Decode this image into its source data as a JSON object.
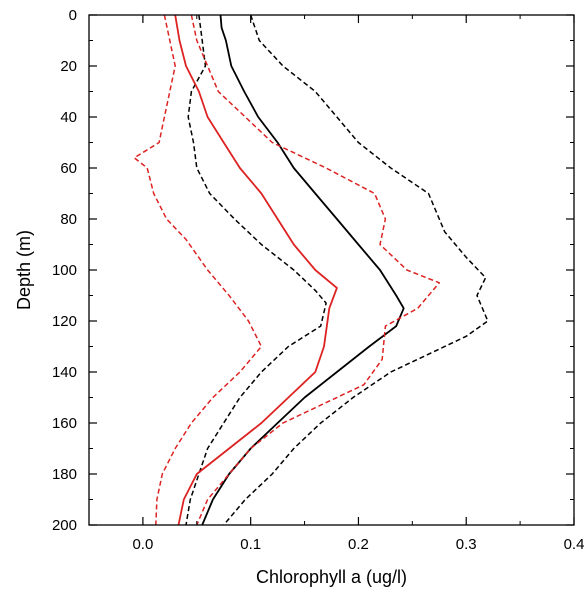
{
  "chart_data": {
    "type": "line",
    "title": "",
    "xlabel": "Chlorophyll a (ug/l)",
    "ylabel": "Depth (m)",
    "xlim": [
      -0.05,
      0.4
    ],
    "ylim": [
      0,
      200
    ],
    "y_inverted": true,
    "grid": false,
    "legend": "none",
    "x_ticks": [
      0.0,
      0.1,
      0.2,
      0.3,
      0.4
    ],
    "x_tick_labels": [
      "0.0",
      "0.1",
      "0.2",
      "0.3",
      "0.4"
    ],
    "y_ticks": [
      0,
      20,
      40,
      60,
      80,
      100,
      120,
      140,
      160,
      180,
      200
    ],
    "y_tick_labels": [
      "0",
      "20",
      "40",
      "60",
      "80",
      "100",
      "120",
      "140",
      "160",
      "180",
      "200"
    ],
    "series": [
      {
        "color": "#000000",
        "style": "solid",
        "points": [
          [
            0.072,
            0
          ],
          [
            0.073,
            5
          ],
          [
            0.077,
            10
          ],
          [
            0.082,
            20
          ],
          [
            0.094,
            30
          ],
          [
            0.107,
            40
          ],
          [
            0.125,
            50
          ],
          [
            0.14,
            60
          ],
          [
            0.16,
            70
          ],
          [
            0.18,
            80
          ],
          [
            0.2,
            90
          ],
          [
            0.22,
            100
          ],
          [
            0.235,
            110
          ],
          [
            0.242,
            115
          ],
          [
            0.235,
            122
          ],
          [
            0.21,
            130
          ],
          [
            0.18,
            140
          ],
          [
            0.15,
            150
          ],
          [
            0.125,
            160
          ],
          [
            0.1,
            170
          ],
          [
            0.08,
            180
          ],
          [
            0.065,
            190
          ],
          [
            0.055,
            200
          ]
        ]
      },
      {
        "color": "#000000",
        "style": "dashed",
        "points": [
          [
            0.052,
            0
          ],
          [
            0.055,
            10
          ],
          [
            0.058,
            20
          ],
          [
            0.045,
            30
          ],
          [
            0.042,
            40
          ],
          [
            0.047,
            50
          ],
          [
            0.05,
            60
          ],
          [
            0.062,
            70
          ],
          [
            0.085,
            80
          ],
          [
            0.11,
            90
          ],
          [
            0.14,
            100
          ],
          [
            0.16,
            108
          ],
          [
            0.17,
            113
          ],
          [
            0.165,
            122
          ],
          [
            0.135,
            130
          ],
          [
            0.11,
            140
          ],
          [
            0.09,
            150
          ],
          [
            0.075,
            160
          ],
          [
            0.06,
            170
          ],
          [
            0.052,
            180
          ],
          [
            0.044,
            190
          ],
          [
            0.04,
            200
          ]
        ]
      },
      {
        "color": "#000000",
        "style": "dashed",
        "points": [
          [
            0.1,
            0
          ],
          [
            0.108,
            10
          ],
          [
            0.13,
            20
          ],
          [
            0.16,
            30
          ],
          [
            0.18,
            40
          ],
          [
            0.2,
            50
          ],
          [
            0.23,
            60
          ],
          [
            0.265,
            70
          ],
          [
            0.28,
            85
          ],
          [
            0.3,
            95
          ],
          [
            0.318,
            103
          ],
          [
            0.31,
            110
          ],
          [
            0.32,
            120
          ],
          [
            0.3,
            126
          ],
          [
            0.265,
            133
          ],
          [
            0.23,
            140
          ],
          [
            0.195,
            150
          ],
          [
            0.165,
            160
          ],
          [
            0.14,
            170
          ],
          [
            0.12,
            180
          ],
          [
            0.095,
            190
          ],
          [
            0.075,
            200
          ]
        ]
      },
      {
        "color": "#dd2222",
        "style": "solid",
        "points": [
          [
            0.03,
            0
          ],
          [
            0.034,
            10
          ],
          [
            0.04,
            20
          ],
          [
            0.052,
            30
          ],
          [
            0.06,
            40
          ],
          [
            0.075,
            50
          ],
          [
            0.09,
            60
          ],
          [
            0.11,
            70
          ],
          [
            0.125,
            80
          ],
          [
            0.14,
            90
          ],
          [
            0.16,
            100
          ],
          [
            0.18,
            107
          ],
          [
            0.173,
            115
          ],
          [
            0.168,
            130
          ],
          [
            0.16,
            140
          ],
          [
            0.135,
            150
          ],
          [
            0.11,
            160
          ],
          [
            0.08,
            170
          ],
          [
            0.05,
            180
          ],
          [
            0.038,
            190
          ],
          [
            0.033,
            200
          ]
        ]
      },
      {
        "color": "#dd2222",
        "style": "dashed",
        "points": [
          [
            0.02,
            0
          ],
          [
            0.025,
            10
          ],
          [
            0.03,
            20
          ],
          [
            0.025,
            30
          ],
          [
            0.02,
            40
          ],
          [
            0.015,
            50
          ],
          [
            -0.008,
            56
          ],
          [
            0.004,
            60
          ],
          [
            0.01,
            70
          ],
          [
            0.022,
            80
          ],
          [
            0.04,
            88
          ],
          [
            0.06,
            100
          ],
          [
            0.08,
            110
          ],
          [
            0.098,
            120
          ],
          [
            0.11,
            130
          ],
          [
            0.09,
            140
          ],
          [
            0.065,
            150
          ],
          [
            0.045,
            160
          ],
          [
            0.03,
            170
          ],
          [
            0.018,
            180
          ],
          [
            0.013,
            190
          ],
          [
            0.012,
            200
          ]
        ]
      },
      {
        "color": "#dd2222",
        "style": "dashed",
        "points": [
          [
            0.045,
            0
          ],
          [
            0.05,
            10
          ],
          [
            0.06,
            20
          ],
          [
            0.07,
            30
          ],
          [
            0.095,
            40
          ],
          [
            0.12,
            50
          ],
          [
            0.17,
            60
          ],
          [
            0.215,
            70
          ],
          [
            0.225,
            80
          ],
          [
            0.22,
            90
          ],
          [
            0.245,
            100
          ],
          [
            0.275,
            105
          ],
          [
            0.255,
            115
          ],
          [
            0.225,
            122
          ],
          [
            0.222,
            135
          ],
          [
            0.205,
            145
          ],
          [
            0.17,
            152
          ],
          [
            0.13,
            160
          ],
          [
            0.1,
            170
          ],
          [
            0.08,
            180
          ],
          [
            0.06,
            190
          ],
          [
            0.05,
            200
          ]
        ]
      }
    ]
  }
}
